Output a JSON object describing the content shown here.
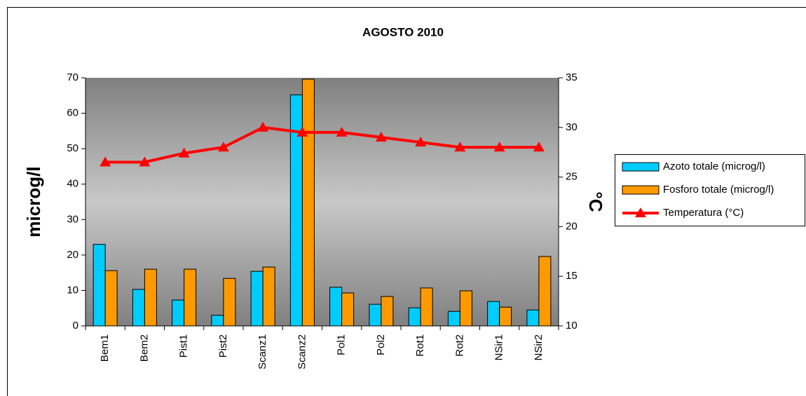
{
  "chart_data": {
    "type": "bar",
    "title": "AGOSTO 2010",
    "ylabel": "microg/l",
    "y2label": "°C",
    "categories": [
      "Bem1",
      "Bem2",
      "Pist1",
      "Pist2",
      "Scanz1",
      "Scanz2",
      "Pol1",
      "Pol2",
      "Rot1",
      "Rot2",
      "NSir1",
      "NSir2"
    ],
    "series": [
      {
        "name": "Azoto totale (microg/l)",
        "type": "bar",
        "color": "#00ccff",
        "values": [
          23,
          10.3,
          7.3,
          3,
          15.4,
          65.2,
          10.9,
          6.1,
          5.1,
          4.1,
          6.9,
          4.5
        ]
      },
      {
        "name": "Fosforo totale (microg/l)",
        "type": "bar",
        "color": "#ff9900",
        "values": [
          15.6,
          16,
          16,
          13.4,
          16.6,
          69.6,
          9.3,
          8.3,
          10.7,
          9.9,
          5.3,
          19.6
        ]
      },
      {
        "name": "Temperatura (°C)",
        "type": "line",
        "axis": "y2",
        "color": "#ff0000",
        "values": [
          26.5,
          26.5,
          27.4,
          28,
          30,
          29.5,
          29.5,
          29,
          28.5,
          28,
          28,
          28
        ]
      }
    ],
    "ylim": [
      0,
      70
    ],
    "yticks": [
      0,
      10,
      20,
      30,
      40,
      50,
      60,
      70
    ],
    "y2lim": [
      10,
      35
    ],
    "y2ticks": [
      10,
      15,
      20,
      25,
      30,
      35
    ],
    "legend": "right"
  }
}
